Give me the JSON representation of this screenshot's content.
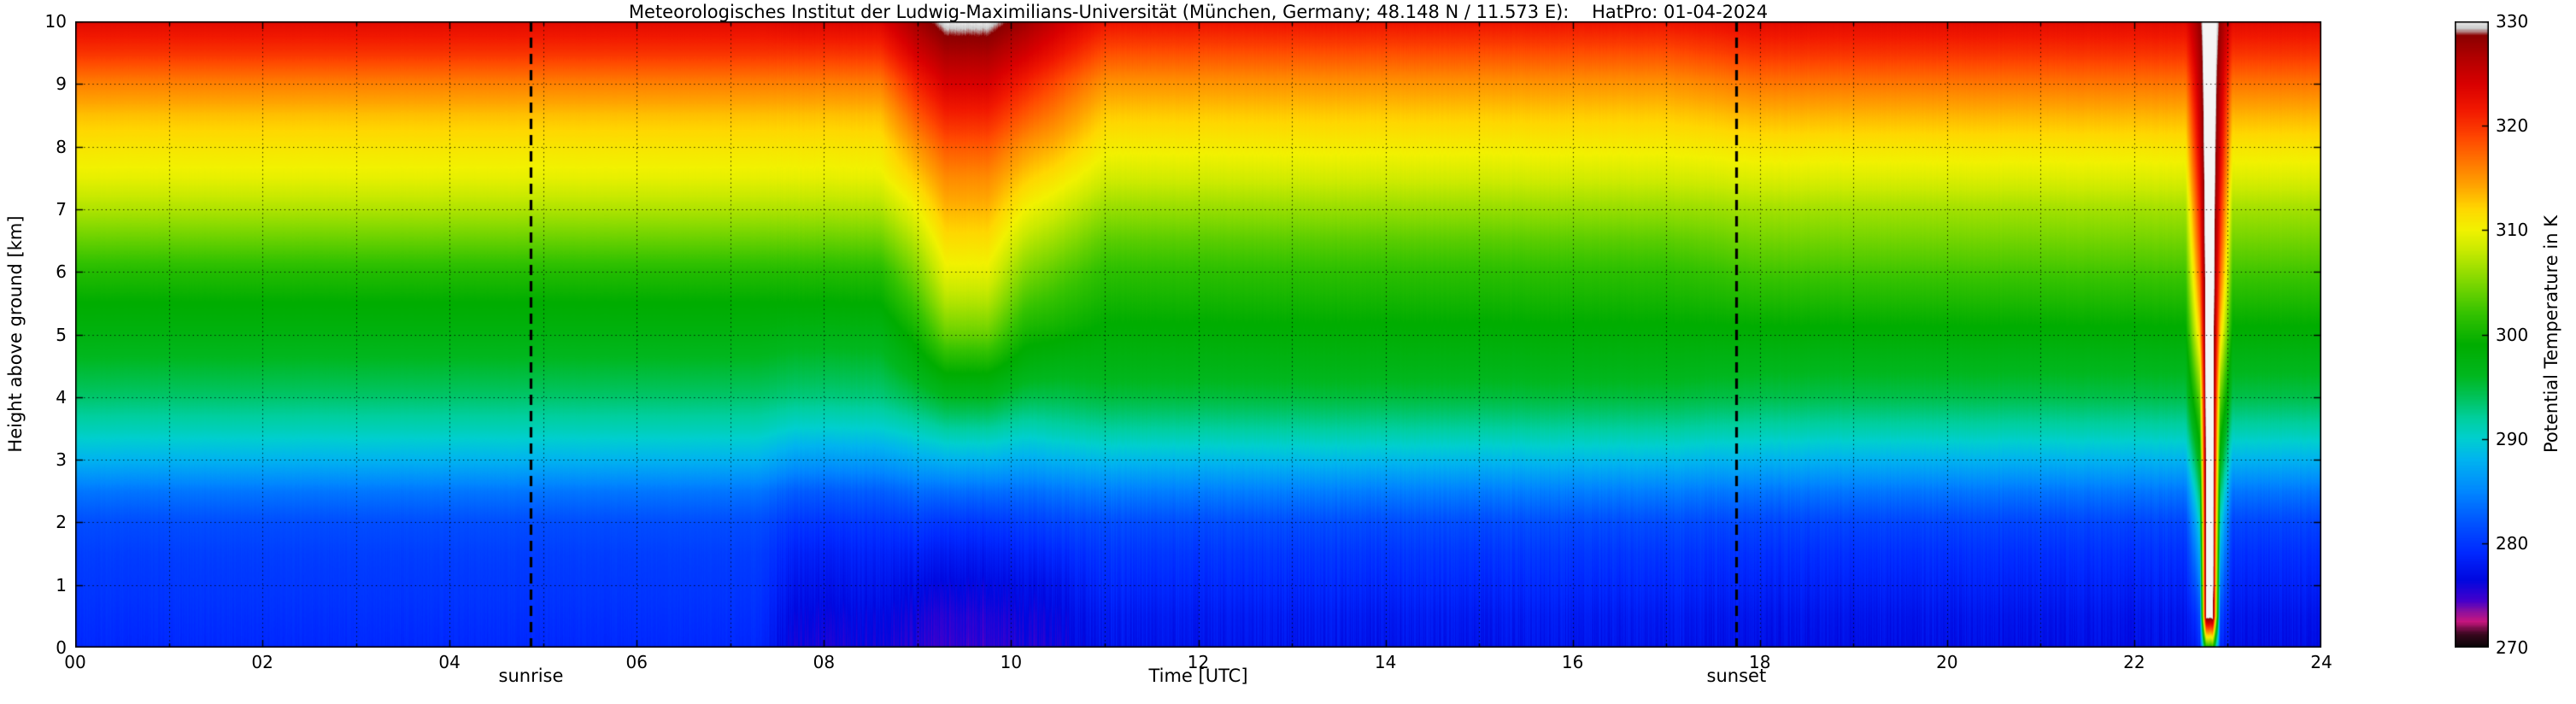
{
  "title": "Meteorologisches Institut der Ludwig-Maximilians-Universität (München, Germany; 48.148 N / 11.573 E):    HatPro: 01-04-2024",
  "chart_data": {
    "type": "heatmap",
    "title": "Meteorologisches Institut der Ludwig-Maximilians-Universität (München, Germany; 48.148 N / 11.573 E):    HatPro: 01-04-2024",
    "xlabel": "Time [UTC]",
    "ylabel": "Height above ground [km]",
    "colorbar_label": "Potential Temperature in K",
    "x_range": [
      0,
      24
    ],
    "y_range": [
      0,
      10
    ],
    "value_range": [
      270,
      330
    ],
    "grid": "dotted",
    "x_ticks": [
      "00",
      "02",
      "04",
      "06",
      "08",
      "10",
      "12",
      "14",
      "16",
      "18",
      "20",
      "22",
      "24"
    ],
    "x_tick_values": [
      0,
      2,
      4,
      6,
      8,
      10,
      12,
      14,
      16,
      18,
      20,
      22,
      24
    ],
    "y_ticks": [
      "0",
      "1",
      "2",
      "3",
      "4",
      "5",
      "6",
      "7",
      "8",
      "9",
      "10"
    ],
    "y_tick_values": [
      0,
      1,
      2,
      3,
      4,
      5,
      6,
      7,
      8,
      9,
      10
    ],
    "colorbar_ticks": [
      "270",
      "280",
      "290",
      "300",
      "310",
      "320",
      "330"
    ],
    "colorbar_tick_values": [
      270,
      280,
      290,
      300,
      310,
      320,
      330
    ],
    "annotations": {
      "sunrise": {
        "label": "sunrise",
        "t": 4.87
      },
      "sunset": {
        "label": "sunset",
        "t": 17.75
      }
    },
    "colormap": [
      [
        270,
        "#050505"
      ],
      [
        271.3,
        "#3a0820"
      ],
      [
        272.5,
        "#c81680"
      ],
      [
        273.5,
        "#8a10a0"
      ],
      [
        274.5,
        "#4400cc"
      ],
      [
        276.5,
        "#0008e0"
      ],
      [
        279,
        "#0028ff"
      ],
      [
        282,
        "#0055ff"
      ],
      [
        285,
        "#0088ff"
      ],
      [
        288,
        "#00b4f0"
      ],
      [
        290,
        "#00cfd0"
      ],
      [
        292,
        "#00cf9e"
      ],
      [
        294,
        "#00c35a"
      ],
      [
        296,
        "#00b820"
      ],
      [
        299,
        "#00ad00"
      ],
      [
        302,
        "#35c300"
      ],
      [
        305,
        "#7fd800"
      ],
      [
        308,
        "#c8ea00"
      ],
      [
        310,
        "#f2f200"
      ],
      [
        312,
        "#ffd800"
      ],
      [
        314,
        "#ffaa00"
      ],
      [
        316.5,
        "#ff7700"
      ],
      [
        319,
        "#ff4400"
      ],
      [
        321.5,
        "#f21900"
      ],
      [
        324,
        "#d90000"
      ],
      [
        326.5,
        "#b20000"
      ],
      [
        328.6,
        "#8c0000"
      ],
      [
        329.3,
        "#c8c8c8"
      ],
      [
        330,
        "#f5f5f5"
      ]
    ],
    "heights_km": [
      0,
      0.5,
      1,
      1.5,
      2,
      2.5,
      3,
      3.5,
      4,
      4.5,
      5,
      5.5,
      6,
      6.5,
      7,
      7.5,
      8,
      8.5,
      9,
      9.5,
      10
    ],
    "profiles": {
      "night": [
        279,
        279.5,
        280,
        280.5,
        281.5,
        284,
        288,
        291,
        293.5,
        295.5,
        297.5,
        299,
        301,
        304,
        307,
        309.5,
        311,
        313,
        316,
        320,
        323
      ],
      "morning_cold_low": [
        276,
        276.5,
        277.5,
        278.5,
        280,
        282.5,
        286.5,
        290,
        293,
        295,
        297,
        299,
        301,
        304,
        307,
        309.5,
        311,
        313,
        316,
        320,
        323.5
      ],
      "plume_edge": [
        275.5,
        276,
        277,
        278.5,
        280.5,
        283.5,
        287.5,
        291,
        294.5,
        297.5,
        300,
        302.5,
        305,
        307.5,
        310,
        312.5,
        315,
        318,
        321,
        324.5,
        327.5
      ],
      "plume_peak": [
        275,
        275.5,
        276.5,
        278,
        280,
        283.5,
        288,
        292,
        296,
        300,
        304,
        307,
        309.5,
        311.5,
        313.5,
        315.5,
        318,
        321,
        324,
        327,
        330
      ],
      "post_plume": [
        276,
        276.5,
        277.5,
        279,
        281,
        284,
        288,
        291.5,
        294.5,
        297,
        299.5,
        301.5,
        303.5,
        306,
        308.5,
        311,
        313.5,
        316,
        318.5,
        322,
        325
      ],
      "day": [
        277.5,
        278,
        279,
        280,
        281.5,
        284.5,
        288.5,
        292,
        295,
        297,
        298.5,
        300,
        301.5,
        303.5,
        306,
        308.5,
        310.5,
        312.5,
        315,
        318.5,
        322
      ],
      "evening": [
        277,
        277.5,
        278.5,
        279.5,
        281,
        284,
        288,
        291.5,
        294.5,
        296.5,
        298.5,
        300.5,
        302.5,
        304.5,
        306.5,
        309,
        311,
        313.5,
        316.5,
        320,
        323
      ],
      "spike_flank": [
        279,
        281,
        284,
        287,
        290,
        293.5,
        297,
        300.5,
        304,
        308,
        312,
        315,
        317.5,
        319.5,
        321,
        322.5,
        324,
        325,
        326,
        327,
        328
      ],
      "spike_core": [
        300,
        331,
        332,
        332,
        332,
        332,
        332,
        332,
        332,
        332,
        332,
        332,
        332,
        332,
        332,
        332,
        332,
        332,
        332,
        332,
        332
      ]
    },
    "columns": [
      {
        "t": 0,
        "p": "night"
      },
      {
        "t": 2,
        "p": "night"
      },
      {
        "t": 4,
        "p": "night"
      },
      {
        "t": 6,
        "p": "night"
      },
      {
        "t": 7.3,
        "p": "night"
      },
      {
        "t": 7.7,
        "p": "morning_cold_low"
      },
      {
        "t": 8.6,
        "p": "morning_cold_low"
      },
      {
        "t": 9.0,
        "p": "plume_edge"
      },
      {
        "t": 9.3,
        "p": "plume_peak"
      },
      {
        "t": 9.75,
        "p": "plume_peak"
      },
      {
        "t": 10.15,
        "p": "plume_edge"
      },
      {
        "t": 10.5,
        "p": "post_plume"
      },
      {
        "t": 11,
        "p": "day"
      },
      {
        "t": 17,
        "p": "day"
      },
      {
        "t": 18,
        "p": "evening"
      },
      {
        "t": 22.55,
        "p": "evening"
      },
      {
        "t": 22.7,
        "p": "spike_flank"
      },
      {
        "t": 22.77,
        "p": "spike_core"
      },
      {
        "t": 22.84,
        "p": "spike_core"
      },
      {
        "t": 22.92,
        "p": "spike_flank"
      },
      {
        "t": 23.05,
        "p": "evening"
      },
      {
        "t": 24,
        "p": "evening"
      }
    ]
  }
}
